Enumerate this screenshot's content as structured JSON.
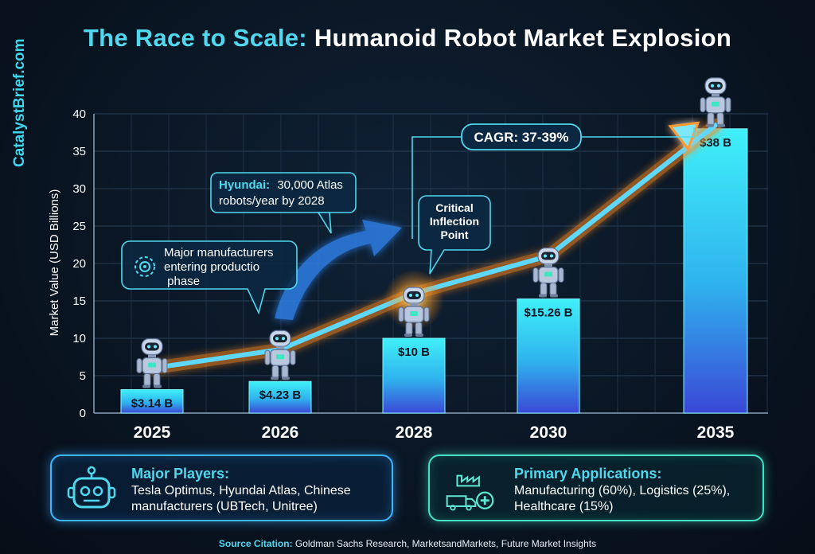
{
  "title": {
    "accent": "The Race to Scale:",
    "rest": "Humanoid Robot Market Explosion"
  },
  "brand": "CatalystBrief.com",
  "chart_data": {
    "type": "bar",
    "categories": [
      "2025",
      "2026",
      "2028",
      "2030",
      "2035"
    ],
    "values": [
      3.14,
      4.23,
      10,
      15.26,
      38
    ],
    "value_labels": [
      "$3.14 B",
      "$4.23 B",
      "$10 B",
      "$15.26 B",
      "$38 B"
    ],
    "ylabel": "Market Value (USD Billions)",
    "ylim": [
      0,
      40
    ],
    "yticks": [
      0,
      5,
      10,
      15,
      20,
      25,
      30,
      35,
      40
    ],
    "grid": true,
    "trend_line": [
      6,
      8.5,
      16,
      21,
      38.5
    ],
    "annotations": {
      "manufacturers": "Major manufacturers entering production phase",
      "hyundai_strong": "Hyundai:",
      "hyundai_line1": "30,000 Atlas",
      "hyundai_line2": "robots/year by 2028",
      "inflection": [
        "Critical",
        "Inflection",
        "Point"
      ],
      "cagr": "CAGR: 37-39%"
    }
  },
  "players": {
    "heading": "Major Players:",
    "body": "Tesla Optimus, Hyundai Atlas, Chinese manufacturers (UBTech, Unitree)",
    "icon": "robot-head-icon"
  },
  "applications": {
    "heading": "Primary Applications:",
    "body": "Manufacturing (60%), Logistics (25%), Healthcare (15%)",
    "icon": "factory-truck-medical-icon"
  },
  "source": {
    "label": "Source Citation:",
    "text": "Goldman Sachs Research, MarketsandMarkets, Future Market Insights"
  },
  "colors": {
    "accent": "#4fd8ee",
    "bar_top": "#39e8f5",
    "bar_bottom": "#3a4fd8",
    "trend": "#ff9a2e",
    "background": "#0a1624"
  }
}
